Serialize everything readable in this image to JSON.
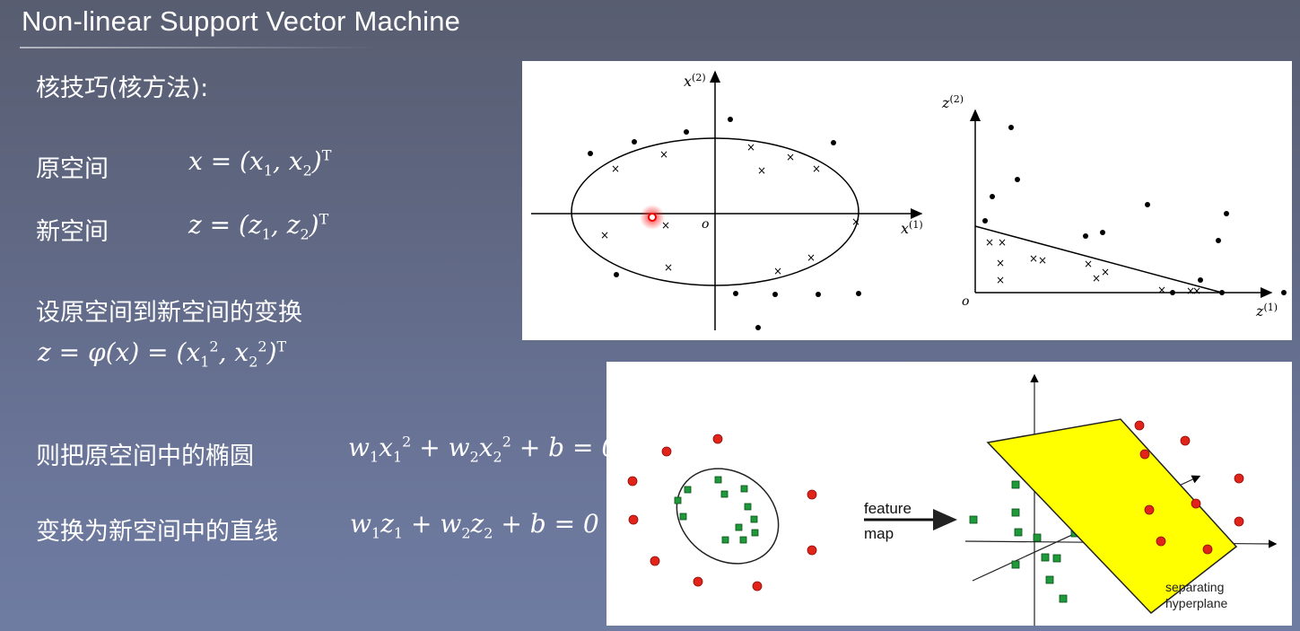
{
  "slide": {
    "title": "Non-linear Support Vector Machine",
    "heading": "核技巧(核方法):",
    "original_space_label": "原空间",
    "new_space_label": "新空间",
    "transform_label": "设原空间到新空间的变换",
    "ellipse_label": "则把原空间中的椭圆",
    "line_label": "变换为新空间中的直线"
  },
  "figure_top": {
    "left_axes": {
      "y_label": "x",
      "y_label_sup": "(2)",
      "x_label": "x",
      "x_label_sup": "(1)",
      "origin": "o"
    },
    "right_axes": {
      "y_label": "z",
      "y_label_sup": "(2)",
      "x_label": "z",
      "x_label_sup": "(1)",
      "origin": "o"
    }
  },
  "figure_bottom": {
    "arrow_label_line1": "feature",
    "arrow_label_line2": "map",
    "plane_label_line1": "separating",
    "plane_label_line2": "hyperplane",
    "colors": {
      "positive": "#e2231a",
      "negative": "#1f9a3a",
      "plane": "#ffff00"
    }
  }
}
